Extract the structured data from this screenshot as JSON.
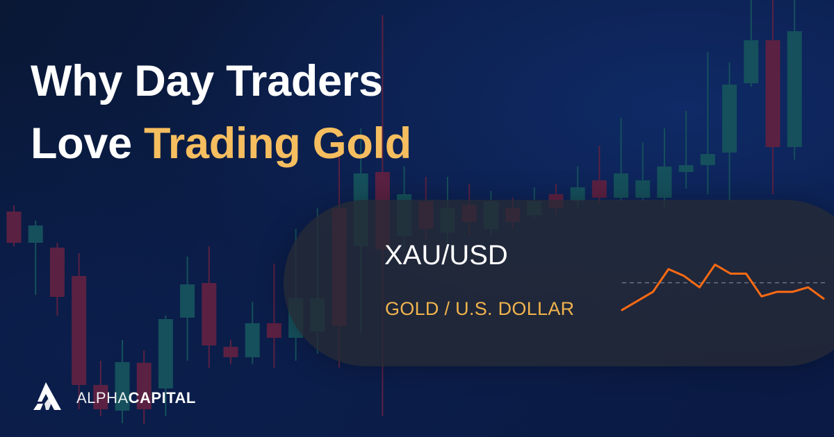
{
  "headline": {
    "line1": "Why Day Traders",
    "line2_plain": "Love ",
    "line2_accent": "Trading Gold"
  },
  "ticker": {
    "symbol": "XAU/USD",
    "description": "GOLD / U.S. DOLLAR"
  },
  "brand": {
    "name_part1": "ALPHA",
    "name_part2": "CAPITAL",
    "logo_icon": "alpha-capital-logo-icon"
  },
  "colors": {
    "background": "#0b1c45",
    "accent_gold": "#f6be5f",
    "sparkline": "#ff6a13",
    "candle_up": "#15505c",
    "candle_down": "#5b2142"
  },
  "sparkline": {
    "values": [
      28,
      36,
      44,
      64,
      58,
      48,
      68,
      60,
      60,
      40,
      44,
      44,
      48,
      38
    ],
    "reference_line": 52
  },
  "background_candles": [
    {
      "o": 350,
      "c": 305,
      "h": 296,
      "l": 355,
      "up": false
    },
    {
      "o": 325,
      "c": 350,
      "h": 318,
      "l": 425,
      "up": true
    },
    {
      "o": 357,
      "c": 428,
      "h": 350,
      "l": 455,
      "up": false
    },
    {
      "o": 398,
      "c": 555,
      "h": 365,
      "l": 590,
      "up": false
    },
    {
      "o": 555,
      "c": 590,
      "h": 520,
      "l": 600,
      "up": false
    },
    {
      "o": 522,
      "c": 592,
      "h": 490,
      "l": 610,
      "up": true
    },
    {
      "o": 523,
      "c": 590,
      "h": 505,
      "l": 612,
      "up": false
    },
    {
      "o": 460,
      "c": 560,
      "h": 455,
      "l": 600,
      "up": true
    },
    {
      "o": 410,
      "c": 458,
      "h": 370,
      "l": 520,
      "up": true
    },
    {
      "o": 408,
      "c": 498,
      "h": 355,
      "l": 530,
      "up": false
    },
    {
      "o": 500,
      "c": 515,
      "h": 490,
      "l": 525,
      "up": false
    },
    {
      "o": 466,
      "c": 515,
      "h": 435,
      "l": 525,
      "up": true
    },
    {
      "o": 466,
      "c": 487,
      "h": 380,
      "l": 530,
      "up": false
    },
    {
      "o": 430,
      "c": 487,
      "h": 330,
      "l": 520,
      "up": true
    },
    {
      "o": 430,
      "c": 478,
      "h": 300,
      "l": 510,
      "up": true
    },
    {
      "o": 300,
      "c": 470,
      "h": 215,
      "l": 530,
      "up": false
    },
    {
      "o": 250,
      "c": 355,
      "h": 185,
      "l": 480,
      "up": true
    },
    {
      "o": 248,
      "c": 360,
      "h": 22,
      "l": 600,
      "up": false
    },
    {
      "o": 280,
      "c": 340,
      "h": 240,
      "l": 360,
      "up": true
    },
    {
      "o": 290,
      "c": 330,
      "h": 255,
      "l": 345,
      "up": false
    },
    {
      "o": 300,
      "c": 335,
      "h": 255,
      "l": 355,
      "up": true
    },
    {
      "o": 295,
      "c": 320,
      "h": 265,
      "l": 340,
      "up": false
    },
    {
      "o": 290,
      "c": 330,
      "h": 275,
      "l": 340,
      "up": true
    },
    {
      "o": 300,
      "c": 320,
      "h": 285,
      "l": 330,
      "up": false
    },
    {
      "o": 290,
      "c": 310,
      "h": 270,
      "l": 315,
      "up": true
    },
    {
      "o": 280,
      "c": 300,
      "h": 265,
      "l": 310,
      "up": false
    },
    {
      "o": 270,
      "c": 290,
      "h": 240,
      "l": 300,
      "up": true
    },
    {
      "o": 260,
      "c": 285,
      "h": 210,
      "l": 295,
      "up": false
    },
    {
      "o": 250,
      "c": 285,
      "h": 170,
      "l": 290,
      "up": true
    },
    {
      "o": 260,
      "c": 285,
      "h": 205,
      "l": 290,
      "up": true
    },
    {
      "o": 240,
      "c": 285,
      "h": 185,
      "l": 300,
      "up": true
    },
    {
      "o": 238,
      "c": 248,
      "h": 160,
      "l": 272,
      "up": true
    },
    {
      "o": 222,
      "c": 238,
      "h": 75,
      "l": 280,
      "up": true
    },
    {
      "o": 122,
      "c": 220,
      "h": 90,
      "l": 290,
      "up": true
    },
    {
      "o": 58,
      "c": 120,
      "h": 0,
      "l": 125,
      "up": true
    },
    {
      "o": 58,
      "c": 212,
      "h": 0,
      "l": 280,
      "up": false
    },
    {
      "o": 45,
      "c": 212,
      "h": 0,
      "l": 230,
      "up": true
    }
  ]
}
